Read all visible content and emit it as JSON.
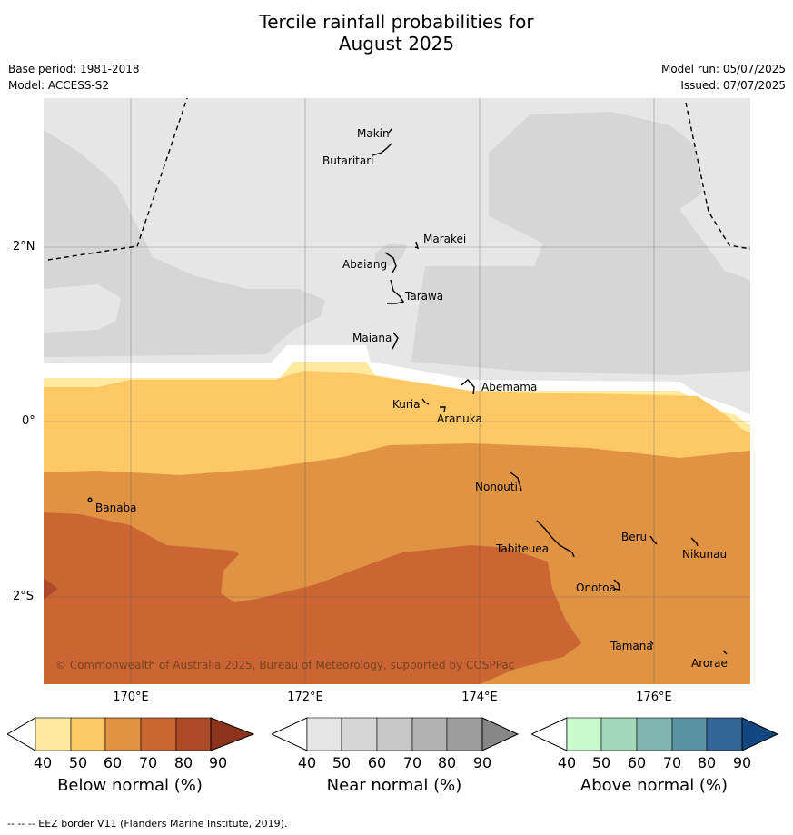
{
  "header": {
    "title_line1": "Tercile rainfall probabilities for",
    "title_line2": "August 2025",
    "base_period": "Base period: 1981-2018",
    "model": "Model: ACCESS-S2",
    "model_run": "Model run: 05/07/2025",
    "issued": "Issued: 07/07/2025"
  },
  "axes": {
    "lat_labels": [
      "2°N",
      "0°",
      "2°S"
    ],
    "lon_labels": [
      "170°E",
      "172°E",
      "174°E",
      "176°E"
    ]
  },
  "places": [
    "Makin",
    "Butaritari",
    "Marakei",
    "Abaiang",
    "Tarawa",
    "Maiana",
    "Abemama",
    "Kuria",
    "Aranuka",
    "Nonouti",
    "Banaba",
    "Tabiteuea",
    "Beru",
    "Nikunau",
    "Onotoa",
    "Tamana",
    "Arorae"
  ],
  "copyright": "© Commonwealth of Australia 2025, Bureau of Meteorology, supported by COSPPac",
  "legends": [
    {
      "title": "Below normal (%)",
      "ticks": [
        "40",
        "50",
        "60",
        "70",
        "80",
        "90"
      ],
      "colors": [
        "#ffeba0",
        "#fdc865",
        "#e09343",
        "#cb6533",
        "#ad4b29",
        "#8c3319"
      ]
    },
    {
      "title": "Near normal (%)",
      "ticks": [
        "40",
        "50",
        "60",
        "70",
        "80",
        "90"
      ],
      "colors": [
        "#e6e6e6",
        "#d6d6d6",
        "#c7c7c7",
        "#b2b2b2",
        "#9e9e9e",
        "#868686"
      ]
    },
    {
      "title": "Above normal (%)",
      "ticks": [
        "40",
        "50",
        "60",
        "70",
        "80",
        "90"
      ],
      "colors": [
        "#c9f9cd",
        "#a3d9bb",
        "#7fb6b1",
        "#5c93a4",
        "#336597",
        "#134781"
      ]
    }
  ],
  "footer": "-- -- -- EEZ border V11 (Flanders Marine Institute, 2019)."
}
